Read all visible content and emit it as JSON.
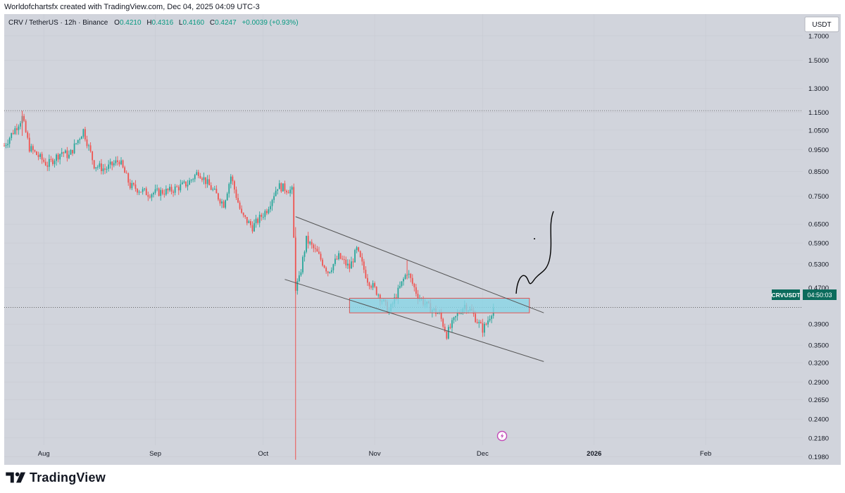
{
  "header": {
    "credit": "Worldofchartsfx created with TradingView.com, Dec 04, 2025 04:09 UTC-3"
  },
  "legend": {
    "symbol": "CRV / TetherUS · 12h · Binance",
    "open_label": "O",
    "open": "0.4210",
    "high_label": "H",
    "high": "0.4316",
    "low_label": "L",
    "low": "0.4160",
    "close_label": "C",
    "close": "0.4247",
    "change": "+0.0039 (+0.93%)"
  },
  "price_scale": {
    "currency_button": "USDT",
    "symbol_tag": "CRVUSDT",
    "countdown": "04:50:03"
  },
  "footer": {
    "brand": "TradingView",
    "logo_icon": "tradingview-logo-icon"
  },
  "colors": {
    "background": "#d1d4dc",
    "up": "#26a69a",
    "down": "#ef5350",
    "zone_fill": "#88d4e6",
    "zone_border": "#e05555",
    "channel": "#555555",
    "drawing": "#000000",
    "tag_bg": "#0b6b5c"
  },
  "chart_data": {
    "type": "candlestick",
    "title": "CRV / TetherUS · 12h · Binance",
    "scale": "log",
    "ylim": [
      0.19,
      1.9
    ],
    "y_ticks": [
      "1.7000",
      "1.5000",
      "1.3000",
      "1.1500",
      "1.0500",
      "0.9500",
      "0.8500",
      "0.7500",
      "0.6500",
      "0.5900",
      "0.5300",
      "0.4700",
      "0.3900",
      "0.3500",
      "0.3200",
      "0.2900",
      "0.2650",
      "0.2400",
      "0.2180",
      "0.1980"
    ],
    "x_ticks": [
      "Aug",
      "Sep",
      "Oct",
      "Nov",
      "Dec",
      "2026",
      "Feb"
    ],
    "x_range": [
      "2025-07-21",
      "2026-02-28"
    ],
    "last_price": 0.4247,
    "dotted_reference_level": 1.16,
    "anchors": [
      [
        "2025-07-21",
        0.97
      ],
      [
        "2025-07-26",
        1.12
      ],
      [
        "2025-07-28",
        0.96
      ],
      [
        "2025-08-02",
        0.88
      ],
      [
        "2025-08-06",
        0.94
      ],
      [
        "2025-08-08",
        0.92
      ],
      [
        "2025-08-12",
        1.05
      ],
      [
        "2025-08-15",
        0.88
      ],
      [
        "2025-08-18",
        0.86
      ],
      [
        "2025-08-22",
        0.9
      ],
      [
        "2025-08-25",
        0.79
      ],
      [
        "2025-08-30",
        0.76
      ],
      [
        "2025-09-05",
        0.77
      ],
      [
        "2025-09-10",
        0.8
      ],
      [
        "2025-09-13",
        0.85
      ],
      [
        "2025-09-16",
        0.79
      ],
      [
        "2025-09-20",
        0.72
      ],
      [
        "2025-09-22",
        0.83
      ],
      [
        "2025-09-25",
        0.68
      ],
      [
        "2025-09-28",
        0.64
      ],
      [
        "2025-10-02",
        0.7
      ],
      [
        "2025-10-05",
        0.79
      ],
      [
        "2025-10-09",
        0.77
      ],
      [
        "2025-10-10",
        0.47
      ],
      [
        "2025-10-11",
        0.49
      ],
      [
        "2025-10-13",
        0.6
      ],
      [
        "2025-10-16",
        0.56
      ],
      [
        "2025-10-19",
        0.51
      ],
      [
        "2025-10-22",
        0.55
      ],
      [
        "2025-10-25",
        0.52
      ],
      [
        "2025-10-27",
        0.57
      ],
      [
        "2025-10-30",
        0.49
      ],
      [
        "2025-11-02",
        0.455
      ],
      [
        "2025-11-05",
        0.415
      ],
      [
        "2025-11-08",
        0.47
      ],
      [
        "2025-11-10",
        0.51
      ],
      [
        "2025-11-13",
        0.45
      ],
      [
        "2025-11-16",
        0.425
      ],
      [
        "2025-11-19",
        0.41
      ],
      [
        "2025-11-21",
        0.37
      ],
      [
        "2025-11-24",
        0.41
      ],
      [
        "2025-11-26",
        0.43
      ],
      [
        "2025-11-28",
        0.415
      ],
      [
        "2025-11-30",
        0.39
      ],
      [
        "2025-12-01",
        0.38
      ],
      [
        "2025-12-02",
        0.39
      ],
      [
        "2025-12-04",
        0.4247
      ]
    ],
    "wicks": [
      {
        "date": "2025-10-10",
        "high": 0.64,
        "low": 0.195
      },
      {
        "date": "2025-07-26",
        "high": 1.16,
        "low": 1.02
      },
      {
        "date": "2025-11-10",
        "high": 0.54,
        "low": 0.49
      }
    ],
    "channel": {
      "upper": [
        [
          "2025-10-10",
          0.675
        ],
        [
          "2025-12-18",
          0.413
        ]
      ],
      "lower": [
        [
          "2025-10-07",
          0.49
        ],
        [
          "2025-12-18",
          0.322
        ]
      ]
    },
    "zone": {
      "from": "2025-10-25",
      "to": "2025-12-14",
      "top": 0.445,
      "bottom": 0.413
    }
  }
}
